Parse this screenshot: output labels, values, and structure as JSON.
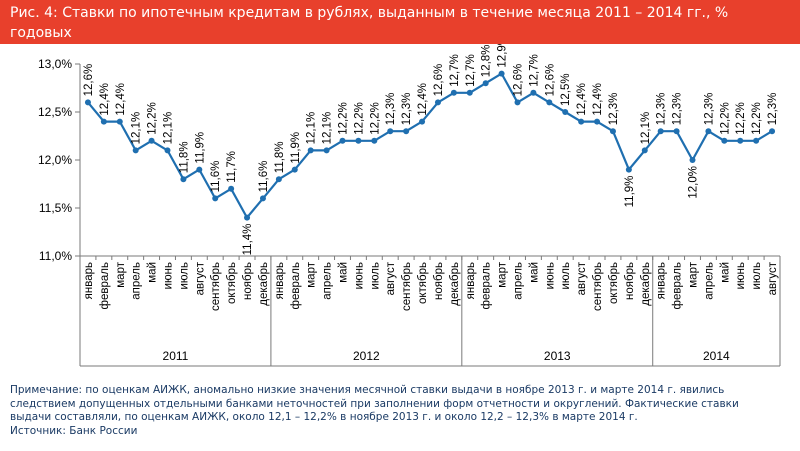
{
  "title": "Рис. 4: Ставки по ипотечным кредитам в рублях, выданным в течение месяца 2011 – 2014 гг., % годовых",
  "notes": [
    "Примечание: по оценкам АИЖК, аномально низкие значения месячной ставки выдачи в ноябре 2013 г. и марте 2014 г. явились",
    "следствием допущенных отдельными банками неточностей при заполнении форм отчетности и округлений. Фактические ставки",
    "выдачи составляли, по оценкам АИЖК, около 12,1 – 12,2% в ноябре 2013 г. и около 12,2 – 12,3% в марте 2014 г.",
    "Источник: Банк России"
  ],
  "colors": {
    "title_bg": "#e8402c",
    "line": "#1f6fb0",
    "axis": "#7a7a7a",
    "note_text": "#1a3a64"
  },
  "chart_data": {
    "type": "line",
    "ylim": [
      11.0,
      13.0
    ],
    "yticks": [
      "11,0%",
      "11,5%",
      "12,0%",
      "12,5%",
      "13,0%"
    ],
    "ytick_values": [
      11.0,
      11.5,
      12.0,
      12.5,
      13.0
    ],
    "months": [
      "январь",
      "февраль",
      "март",
      "апрель",
      "май",
      "июнь",
      "июль",
      "август",
      "сентябрь",
      "октябрь",
      "ноябрь",
      "декабрь"
    ],
    "years": [
      {
        "label": "2011",
        "months": 12
      },
      {
        "label": "2012",
        "months": 12
      },
      {
        "label": "2013",
        "months": 12
      },
      {
        "label": "2014",
        "months": 8
      }
    ],
    "values": [
      12.6,
      12.4,
      12.4,
      12.1,
      12.2,
      12.1,
      11.8,
      11.9,
      11.6,
      11.7,
      11.4,
      11.6,
      11.8,
      11.9,
      12.1,
      12.1,
      12.2,
      12.2,
      12.2,
      12.3,
      12.3,
      12.4,
      12.6,
      12.7,
      12.7,
      12.8,
      12.9,
      12.6,
      12.7,
      12.6,
      12.5,
      12.4,
      12.4,
      12.3,
      11.9,
      12.1,
      12.3,
      12.3,
      12.0,
      12.3,
      12.2,
      12.2,
      12.2,
      12.3
    ],
    "labels": [
      "12,6%",
      "12,4%",
      "12,4%",
      "12,1%",
      "12,2%",
      "12,1%",
      "11,8%",
      "11,9%",
      "11,6%",
      "11,7%",
      "11,4%",
      "11,6%",
      "11,8%",
      "11,9%",
      "12,1%",
      "12,1%",
      "12,2%",
      "12,2%",
      "12,2%",
      "12,3%",
      "12,3%",
      "12,4%",
      "12,6%",
      "12,7%",
      "12,7%",
      "12,8%",
      "12,9%",
      "12,6%",
      "12,7%",
      "12,6%",
      "12,5%",
      "12,4%",
      "12,4%",
      "12,3%",
      "11,9%",
      "12,1%",
      "12,3%",
      "12,3%",
      "12,0%",
      "12,3%",
      "12,2%",
      "12,2%",
      "12,2%",
      "12,3%"
    ],
    "grid": false
  }
}
